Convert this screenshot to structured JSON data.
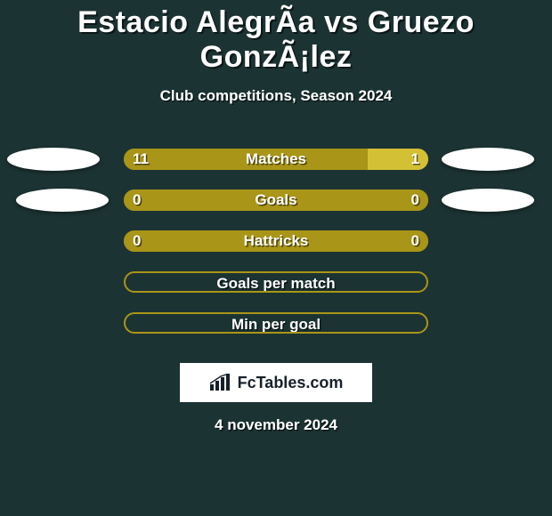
{
  "title": "Estacio AlegrÃa vs Gruezo GonzÃ¡lez",
  "subtitle": "Club competitions, Season 2024",
  "date": "4 november 2024",
  "brand": "FcTables.com",
  "brand_box_bg": "#ffffff",
  "colors": {
    "background": "#1c3333",
    "bar_full_fill": "#a99517",
    "bar_empty_border": "#a99517",
    "left_player_fill": "#a99517",
    "right_player_fill": "#d4c035",
    "text": "#ffffff"
  },
  "avatars": {
    "left_rows": [
      true,
      true,
      false,
      false,
      false
    ],
    "right_rows": [
      true,
      true,
      false,
      false,
      false
    ]
  },
  "rows": [
    {
      "label": "Matches",
      "left_value": "11",
      "right_value": "1",
      "left_pct": 80,
      "right_pct": 20,
      "filled": true,
      "show_values": true
    },
    {
      "label": "Goals",
      "left_value": "0",
      "right_value": "0",
      "left_pct": 100,
      "right_pct": 0,
      "filled": true,
      "show_values": true
    },
    {
      "label": "Hattricks",
      "left_value": "0",
      "right_value": "0",
      "left_pct": 100,
      "right_pct": 0,
      "filled": true,
      "show_values": true
    },
    {
      "label": "Goals per match",
      "left_value": "",
      "right_value": "",
      "left_pct": 0,
      "right_pct": 0,
      "filled": false,
      "show_values": false
    },
    {
      "label": "Min per goal",
      "left_value": "",
      "right_value": "",
      "left_pct": 0,
      "right_pct": 0,
      "filled": false,
      "show_values": false
    }
  ]
}
